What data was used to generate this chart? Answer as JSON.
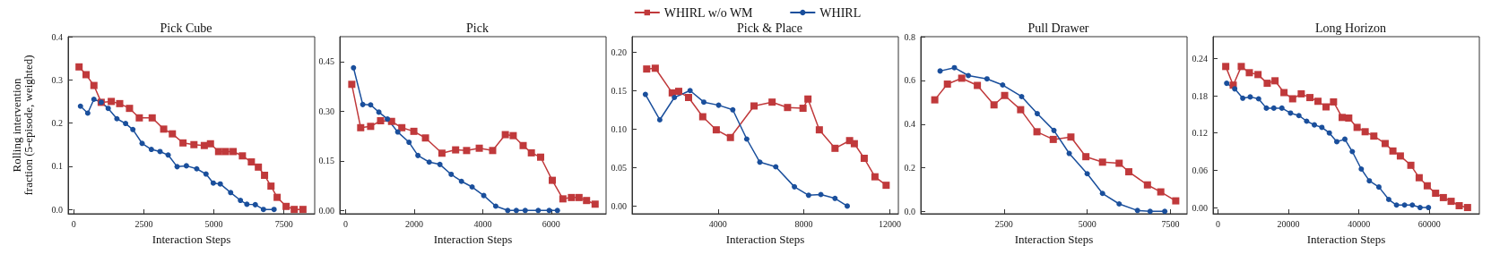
{
  "chart_data": [
    {
      "type": "line",
      "title": "Pick Cube",
      "xlabel": "Interaction Steps",
      "ylabel": "Rolling intervention\nfraction (5-episode, weighted)",
      "xlim": [
        -200,
        8600
      ],
      "ylim": [
        -0.01,
        0.4
      ],
      "xticks": [
        0,
        2500,
        5000,
        7500
      ],
      "yticks": [
        {
          "value": 0,
          "label": "0.0"
        },
        0.1,
        0.2,
        0.3,
        0.4
      ],
      "legend": false,
      "series": [
        {
          "color": "#c0393b",
          "marker": "square",
          "x": [
            190,
            440,
            720,
            980,
            1340,
            1640,
            1990,
            2340,
            2800,
            3210,
            3520,
            3900,
            4290,
            4660,
            4880,
            5170,
            5420,
            5690,
            6020,
            6340,
            6590,
            6810,
            7040,
            7260,
            7580,
            7870,
            8180
          ],
          "values": [
            0.33,
            0.312,
            0.287,
            0.248,
            0.25,
            0.245,
            0.234,
            0.212,
            0.212,
            0.186,
            0.175,
            0.154,
            0.15,
            0.148,
            0.152,
            0.134,
            0.134,
            0.134,
            0.124,
            0.11,
            0.098,
            0.079,
            0.054,
            0.028,
            0.007,
            0,
            0
          ]
        },
        {
          "color": "#1a4f9c",
          "marker": "circle",
          "x": [
            240,
            500,
            720,
            980,
            1230,
            1540,
            1850,
            2110,
            2440,
            2770,
            3080,
            3370,
            3690,
            4020,
            4390,
            4720,
            4980,
            5230,
            5600,
            5950,
            6180,
            6480,
            6770,
            7150
          ],
          "values": [
            0.239,
            0.223,
            0.255,
            0.248,
            0.234,
            0.21,
            0.199,
            0.185,
            0.153,
            0.139,
            0.134,
            0.126,
            0.099,
            0.101,
            0.094,
            0.082,
            0.061,
            0.059,
            0.039,
            0.021,
            0.012,
            0.011,
            0,
            0
          ]
        }
      ]
    },
    {
      "type": "line",
      "title": "Pick",
      "xlabel": "Interaction Steps",
      "xlim": [
        -170,
        7600
      ],
      "ylim": [
        -0.01,
        0.525
      ],
      "xticks": [
        0,
        2000,
        4000,
        6000
      ],
      "yticks": [
        {
          "value": 0,
          "label": "0.00"
        },
        0.15,
        {
          "value": 0.3,
          "label": "0.30"
        },
        0.45
      ],
      "legend": false,
      "series": [
        {
          "color": "#c0393b",
          "marker": "square",
          "x": [
            180,
            440,
            730,
            1020,
            1340,
            1640,
            1990,
            2330,
            2810,
            3210,
            3530,
            3900,
            4290,
            4660,
            4890,
            5180,
            5420,
            5690,
            6030,
            6340,
            6590,
            6810,
            7030,
            7280
          ],
          "values": [
            0.381,
            0.25,
            0.254,
            0.271,
            0.269,
            0.25,
            0.239,
            0.219,
            0.173,
            0.183,
            0.181,
            0.188,
            0.181,
            0.229,
            0.226,
            0.196,
            0.174,
            0.161,
            0.091,
            0.035,
            0.039,
            0.039,
            0.03,
            0.019
          ]
        },
        {
          "color": "#1a4f9c",
          "marker": "circle",
          "x": [
            230,
            500,
            730,
            970,
            1220,
            1520,
            1850,
            2110,
            2440,
            2750,
            3080,
            3380,
            3690,
            4030,
            4380,
            4730,
            4980,
            5240,
            5620,
            5940,
            6180
          ],
          "values": [
            0.431,
            0.32,
            0.319,
            0.297,
            0.276,
            0.237,
            0.206,
            0.166,
            0.146,
            0.139,
            0.109,
            0.088,
            0.071,
            0.045,
            0.013,
            0,
            0,
            0,
            0,
            0,
            0
          ]
        }
      ]
    },
    {
      "type": "line",
      "title": "Pick & Place",
      "xlabel": "Interaction Steps",
      "xlim": [
        0,
        12400
      ],
      "ylim": [
        -0.01,
        0.22
      ],
      "xticks": [
        4000,
        8000,
        12000
      ],
      "yticks": [
        {
          "value": 0,
          "label": "0.00"
        },
        0.05,
        {
          "value": 0.1,
          "label": "0.10"
        },
        0.15,
        {
          "value": 0.2,
          "label": "0.20"
        }
      ],
      "legend": "top",
      "series": [
        {
          "name": "WHIRL w/o WM",
          "color": "#c0393b",
          "marker": "square",
          "x": [
            680,
            1080,
            1870,
            2170,
            2630,
            3290,
            3920,
            4580,
            5680,
            6520,
            7240,
            7960,
            8190,
            8720,
            9450,
            10130,
            10350,
            10810,
            11310,
            11830
          ],
          "values": [
            0.178,
            0.179,
            0.147,
            0.149,
            0.141,
            0.116,
            0.099,
            0.089,
            0.13,
            0.135,
            0.128,
            0.127,
            0.139,
            0.099,
            0.075,
            0.085,
            0.081,
            0.062,
            0.038,
            0.027
          ]
        },
        {
          "name": "WHIRL",
          "color": "#1a4f9c",
          "marker": "circle",
          "x": [
            620,
            1290,
            1970,
            2700,
            3340,
            4030,
            4690,
            5340,
            5950,
            6690,
            7560,
            8220,
            8790,
            9450,
            10020
          ],
          "values": [
            0.145,
            0.112,
            0.141,
            0.15,
            0.135,
            0.131,
            0.125,
            0.087,
            0.057,
            0.051,
            0.025,
            0.014,
            0.015,
            0.01,
            0
          ]
        }
      ]
    },
    {
      "type": "line",
      "title": "Pull Drawer",
      "xlabel": "Interaction Steps",
      "xlim": [
        0,
        8000
      ],
      "ylim": [
        -0.01,
        0.8
      ],
      "xticks": [
        2500,
        5000,
        7500
      ],
      "yticks": [
        {
          "value": 0,
          "label": "0.0"
        },
        0.2,
        0.4,
        0.6,
        0.8
      ],
      "legend": false,
      "series": [
        {
          "color": "#c0393b",
          "marker": "square",
          "x": [
            420,
            800,
            1230,
            1700,
            2200,
            2520,
            3000,
            3490,
            3980,
            4510,
            4960,
            5460,
            5960,
            6250,
            6810,
            7210,
            7660
          ],
          "values": [
            0.511,
            0.583,
            0.61,
            0.577,
            0.488,
            0.531,
            0.466,
            0.365,
            0.33,
            0.341,
            0.251,
            0.226,
            0.221,
            0.182,
            0.122,
            0.09,
            0.049
          ]
        },
        {
          "color": "#1a4f9c",
          "marker": "circle",
          "x": [
            580,
            1010,
            1430,
            1990,
            2460,
            3030,
            3500,
            4000,
            4460,
            5000,
            5460,
            5960,
            6510,
            6890,
            7330
          ],
          "values": [
            0.643,
            0.658,
            0.622,
            0.607,
            0.579,
            0.526,
            0.448,
            0.371,
            0.266,
            0.173,
            0.083,
            0.035,
            0.005,
            0.001,
            0.001
          ]
        }
      ]
    },
    {
      "type": "line",
      "title": "Long Horizon",
      "xlabel": "Interaction Steps",
      "xlim": [
        -1400,
        74200
      ],
      "ylim": [
        -0.01,
        0.275
      ],
      "xticks": [
        0,
        20000,
        40000,
        60000
      ],
      "yticks": [
        {
          "value": 0,
          "label": "0.00"
        },
        0.06,
        0.12,
        0.18,
        0.24
      ],
      "legend": false,
      "series": [
        {
          "color": "#c0393b",
          "marker": "square",
          "x": [
            2200,
            4320,
            6610,
            8900,
            11360,
            13980,
            16190,
            18730,
            21190,
            23640,
            26100,
            28390,
            30680,
            32800,
            35250,
            37120,
            39490,
            41780,
            44240,
            47460,
            49660,
            51780,
            54750,
            57120,
            59410,
            61780,
            63980,
            66190,
            68480,
            70850
          ],
          "values": [
            0.227,
            0.197,
            0.227,
            0.217,
            0.214,
            0.2,
            0.204,
            0.185,
            0.175,
            0.183,
            0.177,
            0.171,
            0.162,
            0.17,
            0.145,
            0.144,
            0.129,
            0.122,
            0.115,
            0.103,
            0.091,
            0.083,
            0.068,
            0.048,
            0.035,
            0.023,
            0.016,
            0.01,
            0.003,
            0
          ]
        },
        {
          "color": "#1a4f9c",
          "marker": "circle",
          "x": [
            2460,
            4750,
            7030,
            9150,
            11530,
            13730,
            15850,
            18140,
            20590,
            22970,
            25170,
            27370,
            29490,
            31610,
            33730,
            36020,
            38140,
            40680,
            42970,
            45680,
            48480,
            50680,
            52970,
            55170,
            57370,
            59750
          ],
          "values": [
            0.2,
            0.191,
            0.176,
            0.178,
            0.175,
            0.16,
            0.16,
            0.16,
            0.152,
            0.148,
            0.139,
            0.133,
            0.129,
            0.12,
            0.106,
            0.11,
            0.09,
            0.062,
            0.043,
            0.033,
            0.013,
            0.004,
            0.004,
            0.004,
            0,
            0
          ]
        }
      ]
    }
  ]
}
